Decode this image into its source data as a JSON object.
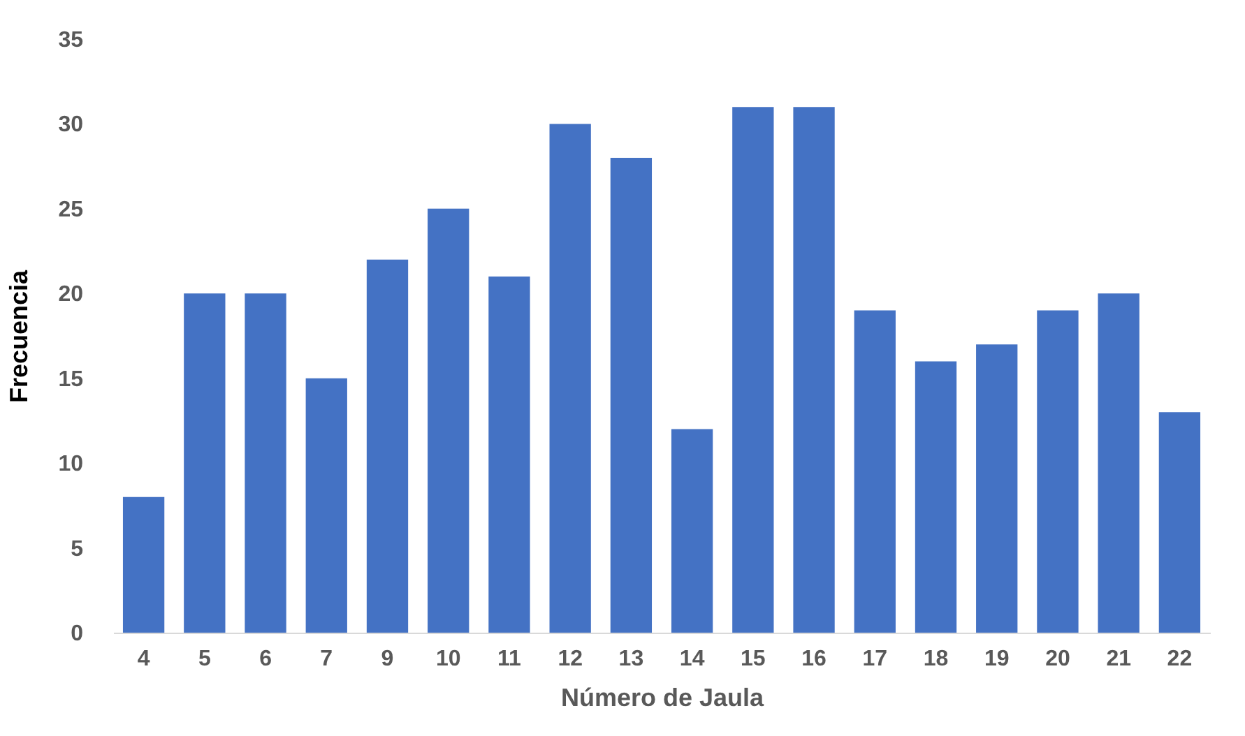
{
  "chart_data": {
    "type": "bar",
    "xlabel": "Número de Jaula",
    "ylabel": "Frecuencia",
    "categories": [
      "4",
      "5",
      "6",
      "7",
      "9",
      "10",
      "11",
      "12",
      "13",
      "14",
      "15",
      "16",
      "17",
      "18",
      "19",
      "20",
      "21",
      "22"
    ],
    "values": [
      8,
      20,
      20,
      15,
      22,
      25,
      21,
      30,
      28,
      12,
      31,
      31,
      19,
      16,
      17,
      19,
      20,
      13
    ],
    "color": "#4472c4",
    "ylim": [
      0,
      35
    ],
    "yticks": [
      0,
      5,
      10,
      15,
      20,
      25,
      30,
      35
    ],
    "grid": false
  }
}
